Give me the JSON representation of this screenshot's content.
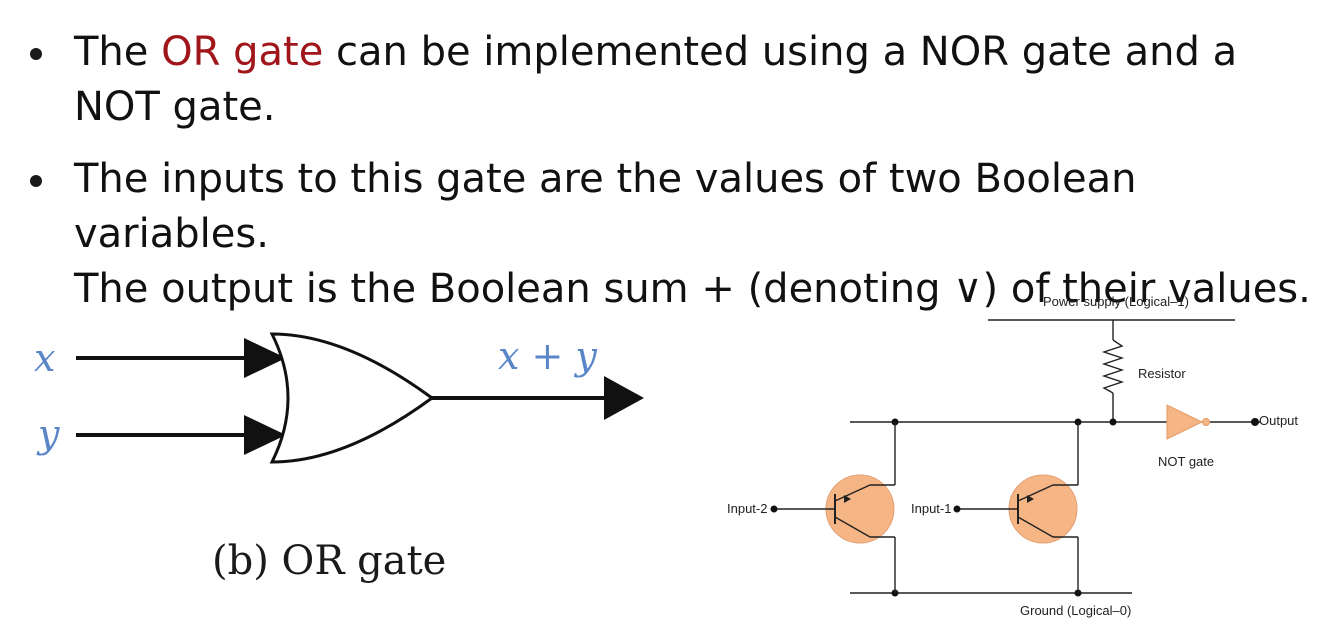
{
  "bullets": [
    {
      "highlight": "OR gate",
      "text_before": "The ",
      "text_after": " can be implemented using a NOR gate and a NOT gate."
    },
    {
      "line1": "The inputs to this gate are the values of two Boolean variables.",
      "line2": "The output is the Boolean sum + (denoting ∨) of their values."
    }
  ],
  "or_diagram": {
    "input_x": "x",
    "input_y": "y",
    "output": "x + y",
    "caption": "(b) OR gate"
  },
  "circuit": {
    "power_label": "Power supply (Logical–1)",
    "resistor_label": "Resistor",
    "output_label": "Output",
    "not_gate_label": "NOT gate",
    "input2_label": "Input-2",
    "input1_label": "Input-1",
    "ground_label": "Ground (Logical–0)"
  },
  "colors": {
    "accent": "#a0161a",
    "variable_blue": "#5a86c8",
    "transistor_fill": "#f6b585",
    "not_gate_fill": "#f6b585"
  }
}
